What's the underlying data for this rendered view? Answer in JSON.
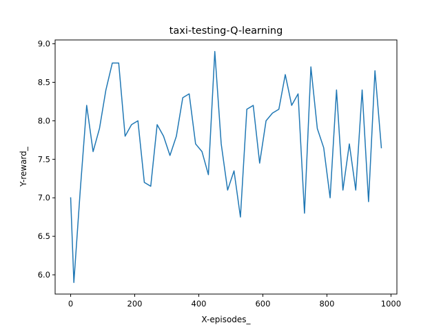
{
  "chart_data": {
    "type": "line",
    "title": "taxi-testing-Q-learning",
    "xlabel": "X-episodes_",
    "ylabel": "Y-reward_",
    "xlim": [
      -48.5,
      1018.5
    ],
    "ylim": [
      5.75,
      9.05
    ],
    "xticks": [
      0,
      200,
      400,
      600,
      800,
      1000
    ],
    "yticks": [
      6.0,
      6.5,
      7.0,
      7.5,
      8.0,
      8.5,
      9.0
    ],
    "xtick_labels": [
      "0",
      "200",
      "400",
      "600",
      "800",
      "1000"
    ],
    "ytick_labels": [
      "6.0",
      "6.5",
      "7.0",
      "7.5",
      "8.0",
      "8.5",
      "9.0"
    ],
    "grid": false,
    "series": [
      {
        "color": "#1f77b4",
        "x": [
          0,
          10,
          30,
          50,
          70,
          90,
          110,
          130,
          150,
          170,
          190,
          210,
          230,
          250,
          270,
          290,
          310,
          330,
          350,
          370,
          390,
          410,
          430,
          450,
          470,
          490,
          510,
          530,
          550,
          570,
          590,
          610,
          630,
          650,
          670,
          690,
          710,
          730,
          750,
          770,
          790,
          810,
          830,
          850,
          870,
          890,
          910,
          930,
          950,
          970
        ],
        "y": [
          7.0,
          5.9,
          7.1,
          8.2,
          7.6,
          7.9,
          8.4,
          8.75,
          8.75,
          7.8,
          7.95,
          8.0,
          7.2,
          7.15,
          7.95,
          7.8,
          7.55,
          7.8,
          8.3,
          8.35,
          7.7,
          7.6,
          7.3,
          8.9,
          7.7,
          7.1,
          7.35,
          6.75,
          8.15,
          8.2,
          7.45,
          8.0,
          8.1,
          8.15,
          8.6,
          8.2,
          8.35,
          6.8,
          8.7,
          7.9,
          7.65,
          7.0,
          8.4,
          7.1,
          7.7,
          7.1,
          8.4,
          6.95,
          8.65,
          7.65
        ]
      }
    ]
  }
}
